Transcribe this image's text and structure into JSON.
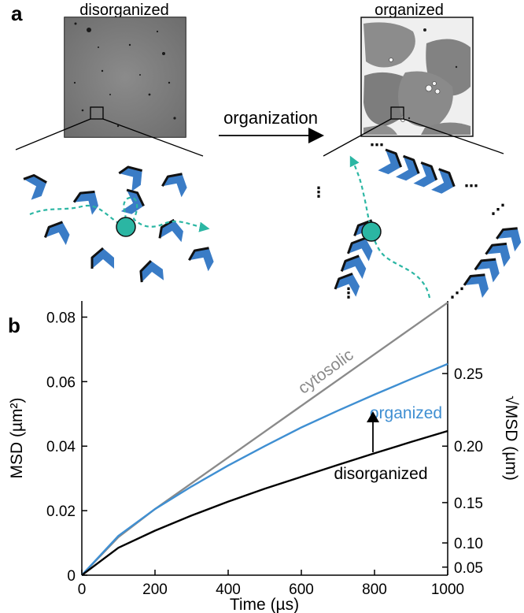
{
  "panel_a": {
    "label": "a",
    "left_title": "disorganized",
    "right_title": "organized",
    "arrow_label": "organization"
  },
  "panel_b": {
    "label": "b"
  },
  "colors": {
    "protein": "#3a7cc6",
    "particle": "#2bb6a3",
    "path": "#2bb6a3",
    "cytosolic": "#8a8a8a",
    "organized": "#3f8fd2",
    "disorganized": "#000000"
  },
  "chart_data": {
    "type": "line",
    "xlabel": "Time (µs)",
    "ylabel": "MSD (µm²)",
    "ylabel_right": "√MSD (µm)",
    "xlim": [
      0,
      1000
    ],
    "ylim": [
      0,
      0.085
    ],
    "x_ticks": [
      0,
      200,
      400,
      600,
      800,
      1000
    ],
    "y_ticks": [
      0,
      0.02,
      0.04,
      0.06,
      0.08
    ],
    "y_tick_labels": [
      "0",
      "0.02",
      "0.04",
      "0.06",
      "0.08"
    ],
    "right_ticks": [
      0.05,
      0.1,
      0.15,
      0.2,
      0.25
    ],
    "right_tick_labels": [
      "0.05",
      "0.10",
      "0.15",
      "0.20",
      "0.25"
    ],
    "grid": false,
    "series": [
      {
        "name": "cytosolic",
        "color": "#8a8a8a",
        "x": [
          0,
          100,
          200,
          300,
          400,
          500,
          600,
          700,
          800,
          900,
          1000
        ],
        "y": [
          0,
          0.0118,
          0.0205,
          0.0285,
          0.0365,
          0.0445,
          0.0525,
          0.0605,
          0.0685,
          0.0765,
          0.0845
        ]
      },
      {
        "name": "organized",
        "color": "#3f8fd2",
        "x": [
          0,
          100,
          200,
          300,
          400,
          500,
          600,
          700,
          800,
          900,
          1000
        ],
        "y": [
          0,
          0.0122,
          0.0205,
          0.0275,
          0.034,
          0.04,
          0.0458,
          0.051,
          0.056,
          0.0608,
          0.0655
        ]
      },
      {
        "name": "disorganized",
        "color": "#000000",
        "x": [
          0,
          100,
          200,
          300,
          400,
          500,
          600,
          700,
          800,
          900,
          1000
        ],
        "y": [
          0,
          0.0085,
          0.0138,
          0.0185,
          0.0228,
          0.0268,
          0.0305,
          0.0342,
          0.0378,
          0.0413,
          0.0447
        ]
      }
    ]
  }
}
